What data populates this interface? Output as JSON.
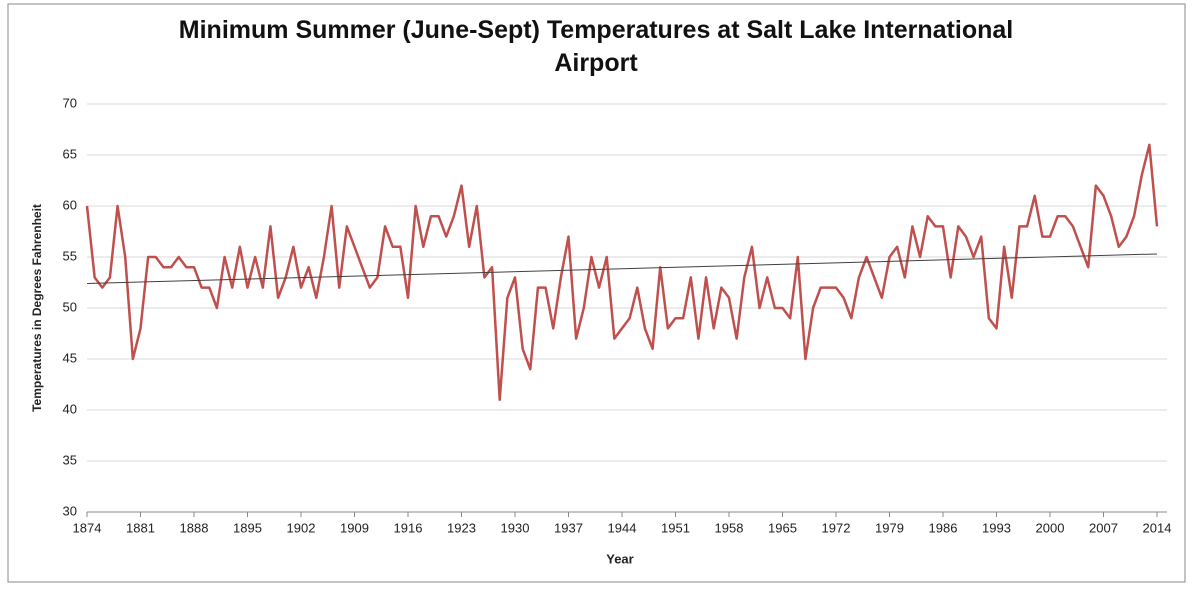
{
  "chart_data": {
    "type": "line",
    "title": "Minimum Summer (June-Sept) Temperatures at Salt Lake International Airport",
    "x_label": "Year",
    "y_label": "Temperatures in Degrees Fahrenheit",
    "x": [
      1874,
      1875,
      1876,
      1877,
      1878,
      1879,
      1880,
      1881,
      1882,
      1883,
      1884,
      1885,
      1886,
      1887,
      1888,
      1889,
      1890,
      1891,
      1892,
      1893,
      1894,
      1895,
      1896,
      1897,
      1898,
      1899,
      1900,
      1901,
      1902,
      1903,
      1904,
      1905,
      1906,
      1907,
      1908,
      1909,
      1910,
      1911,
      1912,
      1913,
      1914,
      1915,
      1916,
      1917,
      1918,
      1919,
      1920,
      1921,
      1922,
      1923,
      1924,
      1925,
      1926,
      1927,
      1928,
      1929,
      1930,
      1931,
      1932,
      1933,
      1934,
      1935,
      1936,
      1937,
      1938,
      1939,
      1940,
      1941,
      1942,
      1943,
      1944,
      1945,
      1946,
      1947,
      1948,
      1949,
      1950,
      1951,
      1952,
      1953,
      1954,
      1955,
      1956,
      1957,
      1958,
      1959,
      1960,
      1961,
      1962,
      1963,
      1964,
      1965,
      1966,
      1967,
      1968,
      1969,
      1970,
      1971,
      1972,
      1973,
      1974,
      1975,
      1976,
      1977,
      1978,
      1979,
      1980,
      1981,
      1982,
      1983,
      1984,
      1985,
      1986,
      1987,
      1988,
      1989,
      1990,
      1991,
      1992,
      1993,
      1994,
      1995,
      1996,
      1997,
      1998,
      1999,
      2000,
      2001,
      2002,
      2003,
      2004,
      2005,
      2006,
      2007,
      2008,
      2009,
      2010,
      2011,
      2012,
      2013,
      2014
    ],
    "values": [
      60,
      53,
      52,
      53,
      60,
      55,
      45,
      48,
      55,
      55,
      54,
      54,
      55,
      54,
      54,
      52,
      52,
      50,
      55,
      52,
      56,
      52,
      55,
      52,
      58,
      51,
      53,
      56,
      52,
      54,
      51,
      55,
      60,
      52,
      58,
      56,
      54,
      52,
      53,
      58,
      56,
      56,
      51,
      60,
      56,
      59,
      59,
      57,
      59,
      62,
      56,
      60,
      53,
      54,
      41,
      51,
      53,
      46,
      44,
      52,
      52,
      48,
      53,
      57,
      47,
      50,
      55,
      52,
      55,
      47,
      48,
      49,
      52,
      48,
      46,
      54,
      48,
      49,
      49,
      53,
      47,
      53,
      48,
      52,
      51,
      47,
      53,
      56,
      50,
      53,
      50,
      50,
      49,
      55,
      45,
      50,
      52,
      52,
      52,
      51,
      49,
      53,
      55,
      53,
      51,
      55,
      56,
      53,
      58,
      55,
      59,
      58,
      58,
      53,
      58,
      57,
      55,
      57,
      49,
      48,
      56,
      51,
      58,
      58,
      61,
      57,
      57,
      59,
      59,
      58,
      56,
      54,
      62,
      61,
      59,
      56,
      57,
      59,
      63,
      66,
      58
    ],
    "color": "#c0504d",
    "trendline": {
      "x": [
        1874,
        2014
      ],
      "values": [
        52.4,
        55.3
      ],
      "color": "#404040"
    },
    "xlim": [
      1874,
      2014
    ],
    "xticks": [
      1874,
      1881,
      1888,
      1895,
      1902,
      1909,
      1916,
      1923,
      1930,
      1937,
      1944,
      1951,
      1958,
      1965,
      1972,
      1979,
      1986,
      1993,
      2000,
      2007,
      2014
    ],
    "ylim": [
      30,
      70
    ],
    "yticks": [
      30,
      35,
      40,
      45,
      50,
      55,
      60,
      65,
      70
    ],
    "grid": true
  }
}
